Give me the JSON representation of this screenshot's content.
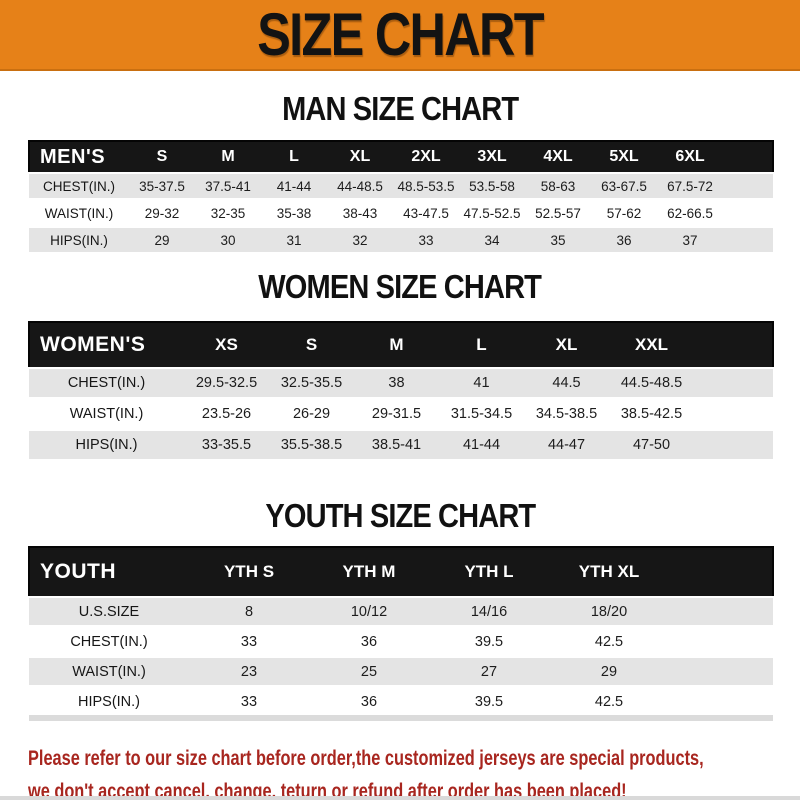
{
  "banner": {
    "title": "SIZE CHART"
  },
  "colors": {
    "banner_orange": "#E68118",
    "header_bar_black": "#161616",
    "row_gray": "#E4E4E4",
    "note_red": "#A8261F"
  },
  "chart_data": [
    {
      "type": "table",
      "title": "MAN SIZE CHART",
      "header_label": "MEN'S",
      "columns": [
        "S",
        "M",
        "L",
        "XL",
        "2XL",
        "3XL",
        "4XL",
        "5XL",
        "6XL"
      ],
      "rows": [
        {
          "label": "CHEST(IN.)",
          "values": [
            "35-37.5",
            "37.5-41",
            "41-44",
            "44-48.5",
            "48.5-53.5",
            "53.5-58",
            "58-63",
            "63-67.5",
            "67.5-72"
          ]
        },
        {
          "label": "WAIST(IN.)",
          "values": [
            "29-32",
            "32-35",
            "35-38",
            "38-43",
            "43-47.5",
            "47.5-52.5",
            "52.5-57",
            "57-62",
            "62-66.5"
          ]
        },
        {
          "label": "HIPS(IN.)",
          "values": [
            "29",
            "30",
            "31",
            "32",
            "33",
            "34",
            "35",
            "36",
            "37"
          ]
        }
      ]
    },
    {
      "type": "table",
      "title": "WOMEN SIZE CHART",
      "header_label": "WOMEN'S",
      "columns": [
        "XS",
        "S",
        "M",
        "L",
        "XL",
        "XXL"
      ],
      "rows": [
        {
          "label": "CHEST(IN.)",
          "values": [
            "29.5-32.5",
            "32.5-35.5",
            "38",
            "41",
            "44.5",
            "44.5-48.5"
          ]
        },
        {
          "label": "WAIST(IN.)",
          "values": [
            "23.5-26",
            "26-29",
            "29-31.5",
            "31.5-34.5",
            "34.5-38.5",
            "38.5-42.5"
          ]
        },
        {
          "label": "HIPS(IN.)",
          "values": [
            "33-35.5",
            "35.5-38.5",
            "38.5-41",
            "41-44",
            "44-47",
            "47-50"
          ]
        }
      ]
    },
    {
      "type": "table",
      "title": "YOUTH SIZE CHART",
      "header_label": "YOUTH",
      "columns": [
        "YTH S",
        "YTH M",
        "YTH L",
        "YTH XL"
      ],
      "rows": [
        {
          "label": "U.S.SIZE",
          "values": [
            "8",
            "10/12",
            "14/16",
            "18/20"
          ]
        },
        {
          "label": "CHEST(IN.)",
          "values": [
            "33",
            "36",
            "39.5",
            "42.5"
          ]
        },
        {
          "label": "WAIST(IN.)",
          "values": [
            "23",
            "25",
            "27",
            "29"
          ]
        },
        {
          "label": "HIPS(IN.)",
          "values": [
            "33",
            "36",
            "39.5",
            "42.5"
          ]
        }
      ]
    }
  ],
  "footer": {
    "line1": "Please refer to our size chart before order,the customized jerseys are special products,",
    "line2": "we don't accept cancel, change, teturn or refund after order has been placed!"
  }
}
